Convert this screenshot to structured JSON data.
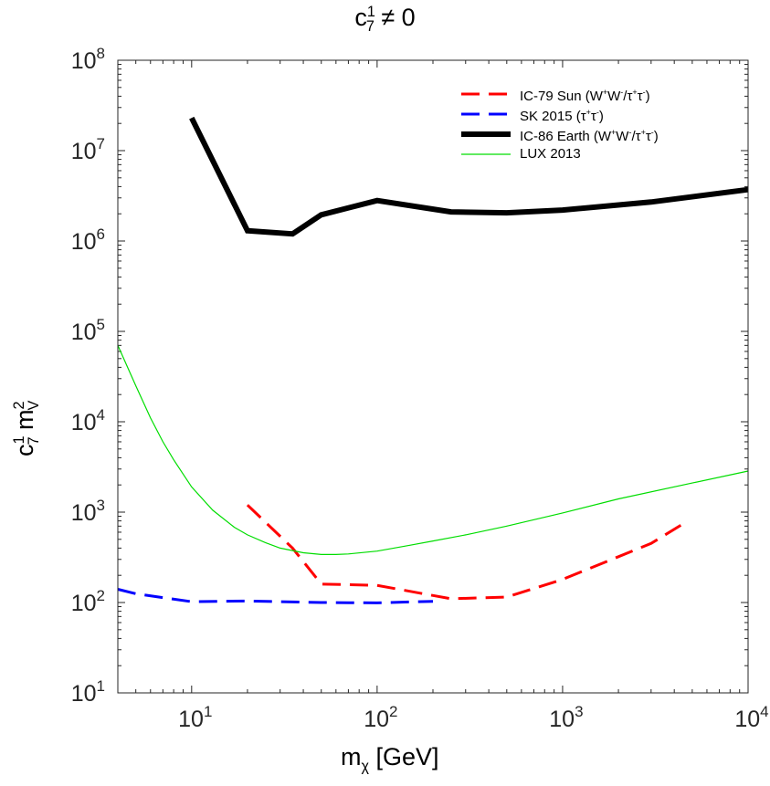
{
  "chart_data": {
    "type": "line",
    "title": "c",
    "title_sup": "1",
    "title_sub": "7",
    "title_tail": " ≠ 0",
    "xlabel_main": "m",
    "xlabel_sub": "χ",
    "xlabel_unit": " [GeV]",
    "ylabel_c": "c",
    "ylabel_c_sup": "1",
    "ylabel_c_sub": "7",
    "ylabel_m": " m",
    "ylabel_m_sup": "2",
    "ylabel_m_sub": "V",
    "xscale": "log",
    "yscale": "log",
    "xlim": [
      4,
      10000
    ],
    "ylim": [
      10,
      100000000
    ],
    "x_ticks": [
      {
        "v": 10,
        "base": "10",
        "exp": "1"
      },
      {
        "v": 100,
        "base": "10",
        "exp": "2"
      },
      {
        "v": 1000,
        "base": "10",
        "exp": "3"
      },
      {
        "v": 10000,
        "base": "10",
        "exp": "4"
      }
    ],
    "y_ticks": [
      {
        "v": 10,
        "base": "10",
        "exp": "1"
      },
      {
        "v": 100,
        "base": "10",
        "exp": "2"
      },
      {
        "v": 1000,
        "base": "10",
        "exp": "3"
      },
      {
        "v": 10000,
        "base": "10",
        "exp": "4"
      },
      {
        "v": 100000,
        "base": "10",
        "exp": "5"
      },
      {
        "v": 1000000,
        "base": "10",
        "exp": "6"
      },
      {
        "v": 10000000,
        "base": "10",
        "exp": "7"
      },
      {
        "v": 100000000,
        "base": "10",
        "exp": "8"
      }
    ],
    "legend_position": "top-right",
    "series": [
      {
        "name": "IC-79 Sun (W+W-/τ+τ-)",
        "legend": [
          "IC-79 Sun (W",
          "+",
          "W",
          "-",
          "/τ",
          "+",
          "τ",
          "-",
          ")"
        ],
        "legend_fmt": [
          "t",
          "sup",
          "t",
          "sup",
          "t",
          "sup",
          "t",
          "sup",
          "t"
        ],
        "color": "#ff0000",
        "style": "dashed",
        "width": 3,
        "x": [
          20,
          35,
          50,
          100,
          250,
          500,
          1000,
          3000,
          4500
        ],
        "y": [
          1200,
          400,
          160,
          155,
          110,
          115,
          180,
          450,
          750
        ]
      },
      {
        "name": "SK 2015 (τ+τ-)",
        "legend": [
          "SK 2015 (τ",
          "+",
          "τ",
          "-",
          ")"
        ],
        "legend_fmt": [
          "t",
          "sup",
          "t",
          "sup",
          "t"
        ],
        "color": "#0000ff",
        "style": "dashed",
        "width": 3,
        "x": [
          4,
          5,
          10,
          20,
          50,
          100,
          200
        ],
        "y": [
          140,
          125,
          102,
          104,
          100,
          99,
          103
        ]
      },
      {
        "name": "IC-86 Earth (W+W-/τ+τ-)",
        "legend": [
          "IC-86 Earth (W",
          "+",
          "W",
          "-",
          "/τ",
          "+",
          "τ",
          "-",
          ")"
        ],
        "legend_fmt": [
          "t",
          "sup",
          "t",
          "sup",
          "t",
          "sup",
          "t",
          "sup",
          "t"
        ],
        "color": "#000000",
        "style": "solid",
        "width": 6,
        "x": [
          10,
          20,
          35,
          50,
          100,
          250,
          500,
          1000,
          3000,
          10000
        ],
        "y": [
          23000000,
          1300000,
          1200000,
          1950000,
          2800000,
          2100000,
          2050000,
          2200000,
          2700000,
          3700000
        ]
      },
      {
        "name": "LUX 2013",
        "legend": [
          "LUX 2013"
        ],
        "legend_fmt": [
          "t"
        ],
        "color": "#00dd00",
        "style": "solid",
        "width": 1.2,
        "x": [
          4,
          5,
          6,
          7,
          8,
          10,
          13,
          17,
          20,
          25,
          30,
          40,
          50,
          60,
          70,
          100,
          150,
          200,
          300,
          500,
          1000,
          2000,
          5000,
          10000
        ],
        "y": [
          70000,
          25000,
          11000,
          6000,
          3800,
          1900,
          1050,
          680,
          560,
          460,
          400,
          355,
          340,
          340,
          345,
          370,
          430,
          480,
          560,
          700,
          980,
          1400,
          2100,
          2850
        ]
      }
    ]
  }
}
